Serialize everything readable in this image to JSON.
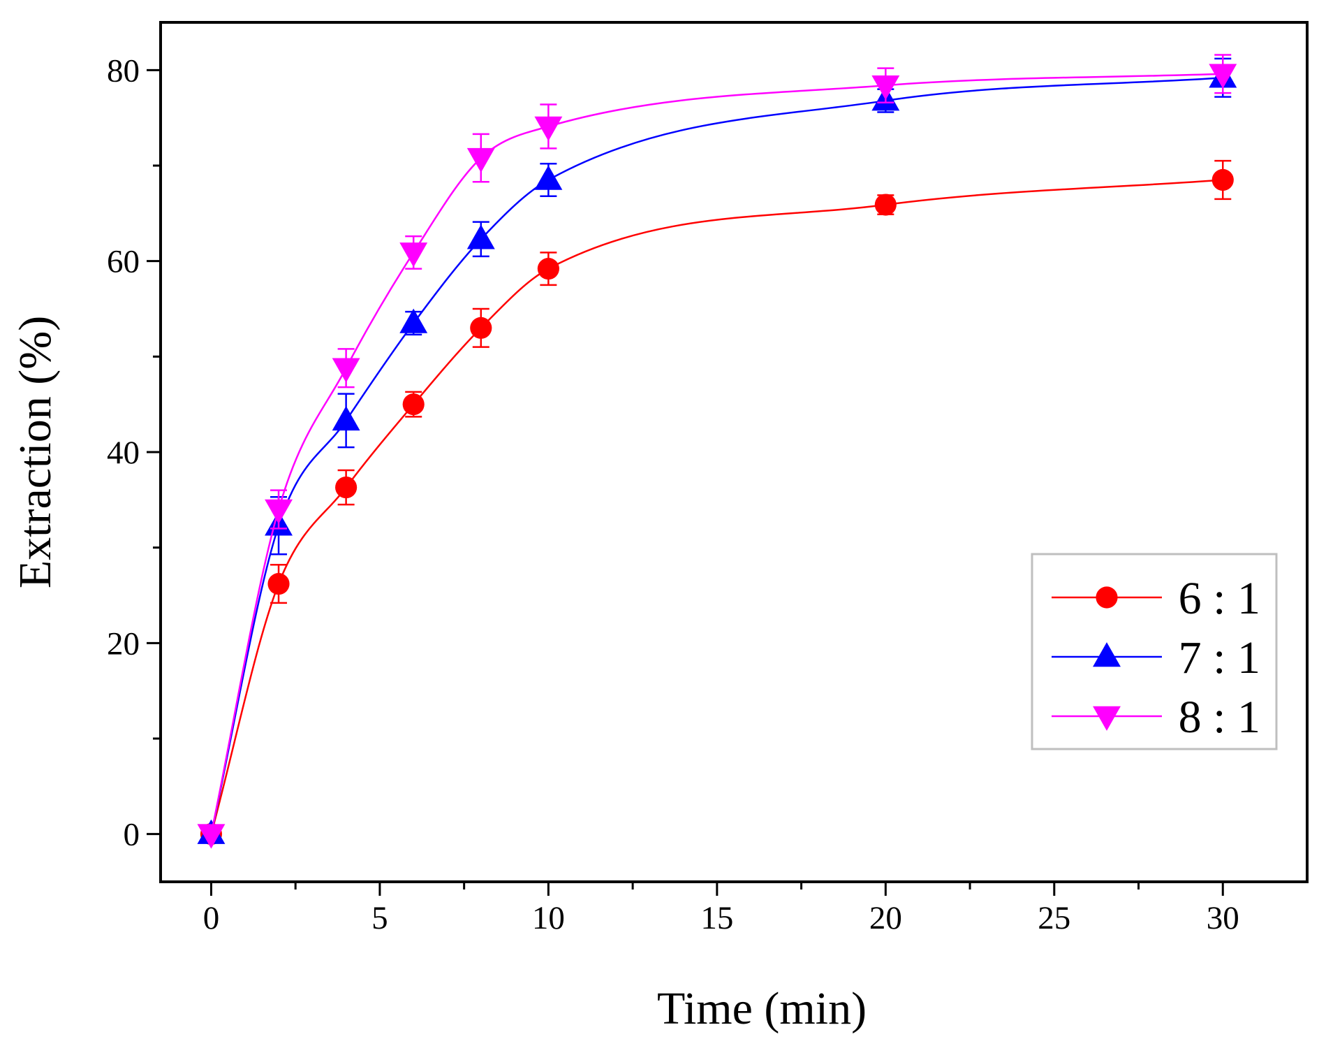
{
  "chart_data": {
    "type": "line",
    "title": "",
    "xlabel": "Time (min)",
    "ylabel": "Extraction (%)",
    "xlim": [
      -1.5,
      32.5
    ],
    "ylim": [
      -5,
      85
    ],
    "x_ticks": [
      0,
      5,
      10,
      15,
      20,
      25,
      30
    ],
    "y_ticks": [
      0,
      20,
      40,
      60,
      80
    ],
    "x_tick_labels": [
      "0",
      "5",
      "10",
      "15",
      "20",
      "25",
      "30"
    ],
    "y_tick_labels": [
      "0",
      "20",
      "40",
      "60",
      "80"
    ],
    "x_minor_step": 2.5,
    "y_minor_step": 10,
    "grid": false,
    "legend_position": "bottom-right",
    "x": [
      0,
      2,
      4,
      6,
      8,
      10,
      20,
      30
    ],
    "series": [
      {
        "name": "6 : 1",
        "color": "#ff0000",
        "marker": "circle",
        "values": [
          0,
          26.2,
          36.3,
          45.0,
          53.0,
          59.2,
          65.9,
          68.5
        ],
        "errors": [
          0,
          2.0,
          1.8,
          1.3,
          2.0,
          1.7,
          1.0,
          2.0
        ]
      },
      {
        "name": "7 : 1",
        "color": "#0000ff",
        "marker": "triangle-up",
        "values": [
          0,
          32.3,
          43.3,
          53.5,
          62.3,
          68.5,
          76.8,
          79.2
        ],
        "errors": [
          0,
          3.0,
          2.8,
          1.2,
          1.8,
          1.7,
          1.2,
          2.0
        ]
      },
      {
        "name": "8 : 1",
        "color": "#ff00ff",
        "marker": "triangle-down",
        "values": [
          0,
          34.0,
          48.8,
          60.9,
          70.8,
          74.1,
          78.4,
          79.6
        ],
        "errors": [
          0,
          2.0,
          2.0,
          1.7,
          2.5,
          2.3,
          1.8,
          2.0
        ]
      }
    ]
  }
}
